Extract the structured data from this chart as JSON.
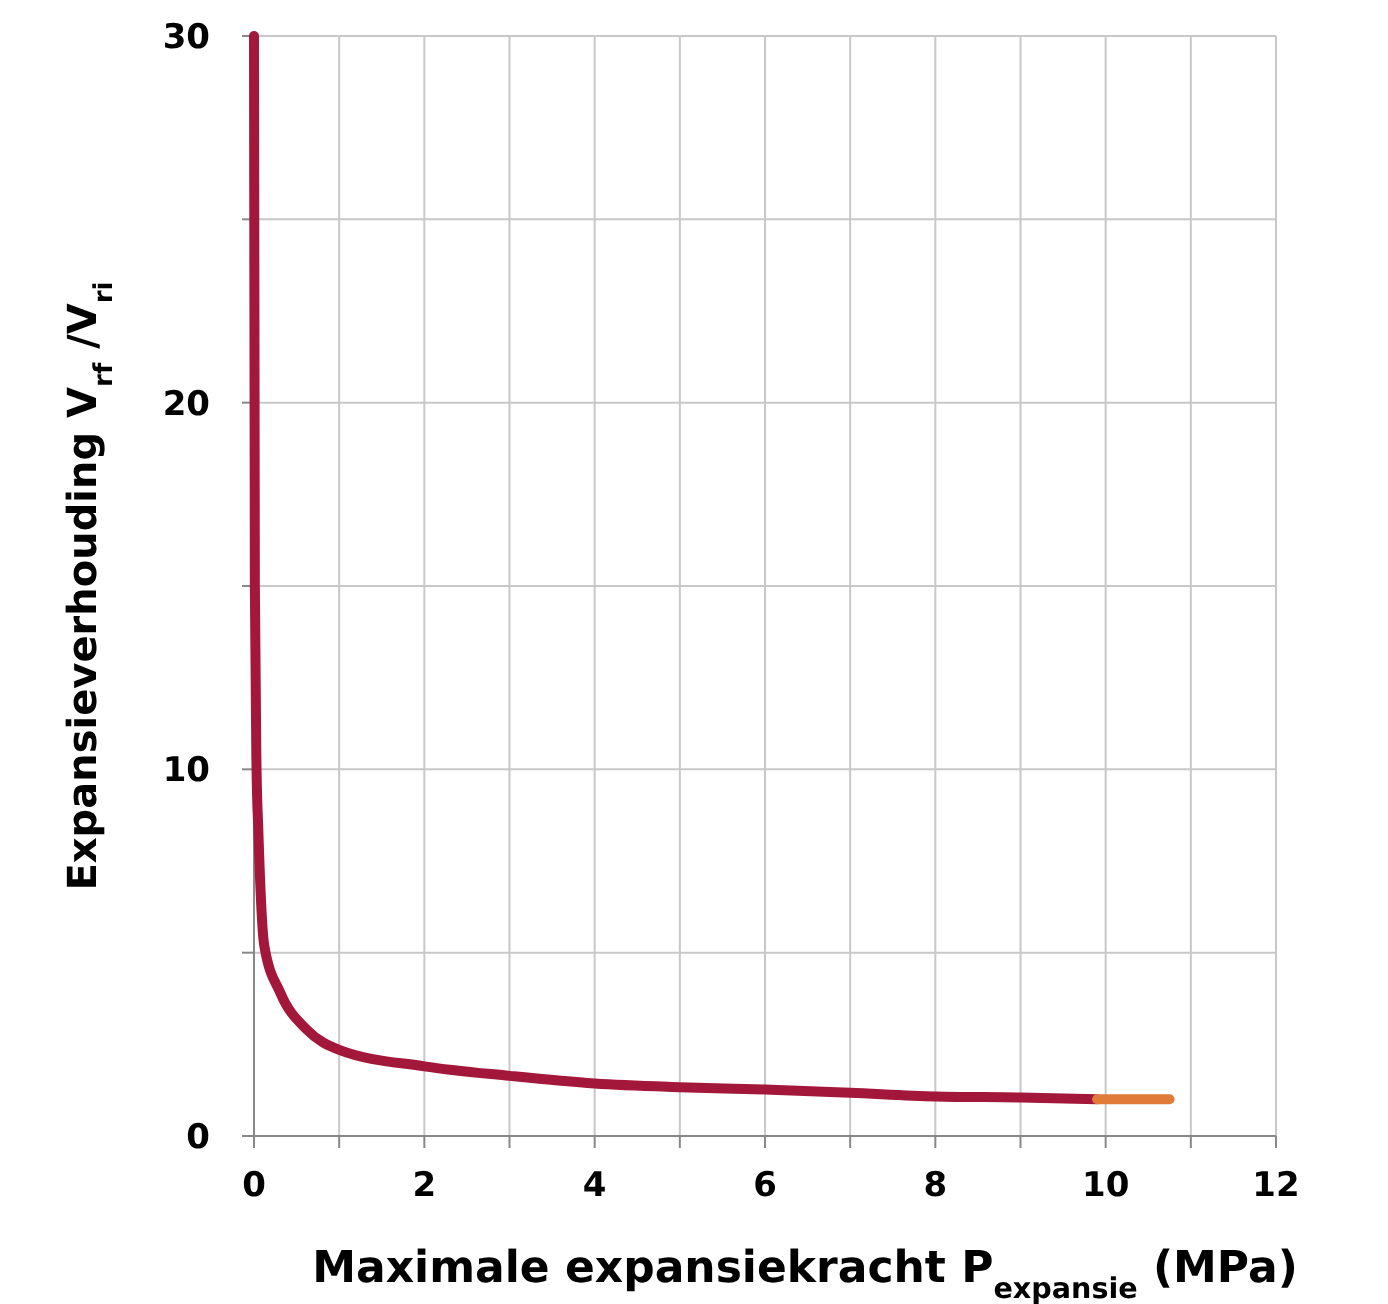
{
  "chart_data": {
    "type": "line",
    "xlabel": "Maximale expansiekracht P$_{expansie}$ (MPa)",
    "ylabel": "Expansieverhouding V$_{rf}$ /V$_{ri}$",
    "xlim": [
      0,
      12
    ],
    "xticks": [
      0,
      {
        "value": 1,
        "label": null
      },
      2,
      {
        "value": 3,
        "label": null
      },
      4,
      {
        "value": 5,
        "label": null
      },
      6,
      {
        "value": 7,
        "label": null
      },
      8,
      {
        "value": 9,
        "label": null
      },
      10,
      {
        "value": 11,
        "label": null
      },
      12
    ],
    "ylim": [
      0,
      30
    ],
    "yticks": [
      0,
      {
        "value": 5,
        "label": null
      },
      10,
      {
        "value": 15,
        "label": null
      },
      20,
      {
        "value": 25,
        "label": null
      },
      30
    ],
    "grid": true,
    "marker": "none",
    "line_style": "solid",
    "series": [
      {
        "color": "#a3173a",
        "x": [
          0,
          0.01,
          0.03,
          0.05,
          0.12,
          0.31,
          0.62,
          1,
          2,
          3,
          4,
          5,
          6,
          7,
          8,
          9,
          9.9
        ],
        "values": [
          30,
          15,
          10,
          8.4,
          5.2,
          3.9,
          2.9,
          2.35,
          1.9,
          1.64,
          1.43,
          1.33,
          1.27,
          1.18,
          1.08,
          1.05,
          1.0
        ]
      },
      {
        "color": "#e07b39",
        "x": [
          9.9,
          10.75
        ],
        "values": [
          1.0,
          1.0
        ]
      }
    ]
  }
}
